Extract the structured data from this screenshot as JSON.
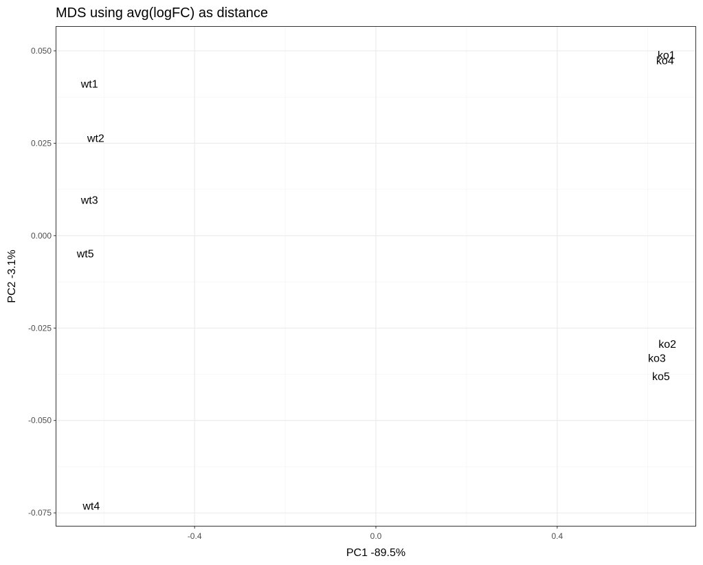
{
  "chart_data": {
    "type": "scatter",
    "title": "MDS using avg(logFC) as distance",
    "xlabel": "PC1 -89.5%",
    "ylabel": "PC2 -3.1%",
    "xlim": [
      -0.705,
      0.705
    ],
    "ylim": [
      -0.0785,
      0.0565
    ],
    "x_major_ticks": [
      -0.4,
      0.0,
      0.4
    ],
    "x_tick_labels": [
      "-0.4",
      "0.0",
      "0.4"
    ],
    "x_minor_ticks": [
      -0.6,
      -0.2,
      0.2,
      0.6
    ],
    "y_major_ticks": [
      0.05,
      0.025,
      0.0,
      -0.025,
      -0.05,
      -0.075
    ],
    "y_tick_labels": [
      "0.050",
      "0.025",
      "0.000",
      "-0.025",
      "-0.050",
      "-0.075"
    ],
    "y_minor_ticks": [
      0.0375,
      0.0125,
      -0.0125,
      -0.0375,
      -0.0625
    ],
    "grid": true,
    "points": [
      {
        "label": "ko1",
        "x": 0.641,
        "y": 0.049
      },
      {
        "label": "ko4",
        "x": 0.638,
        "y": 0.0475
      },
      {
        "label": "wt1",
        "x": -0.632,
        "y": 0.0412
      },
      {
        "label": "wt2",
        "x": -0.618,
        "y": 0.0265
      },
      {
        "label": "wt3",
        "x": -0.632,
        "y": 0.0097
      },
      {
        "label": "wt5",
        "x": -0.641,
        "y": -0.0048
      },
      {
        "label": "ko2",
        "x": 0.643,
        "y": -0.0292
      },
      {
        "label": "ko3",
        "x": 0.62,
        "y": -0.033
      },
      {
        "label": "ko5",
        "x": 0.629,
        "y": -0.038
      },
      {
        "label": "wt4",
        "x": -0.628,
        "y": -0.073
      }
    ]
  }
}
